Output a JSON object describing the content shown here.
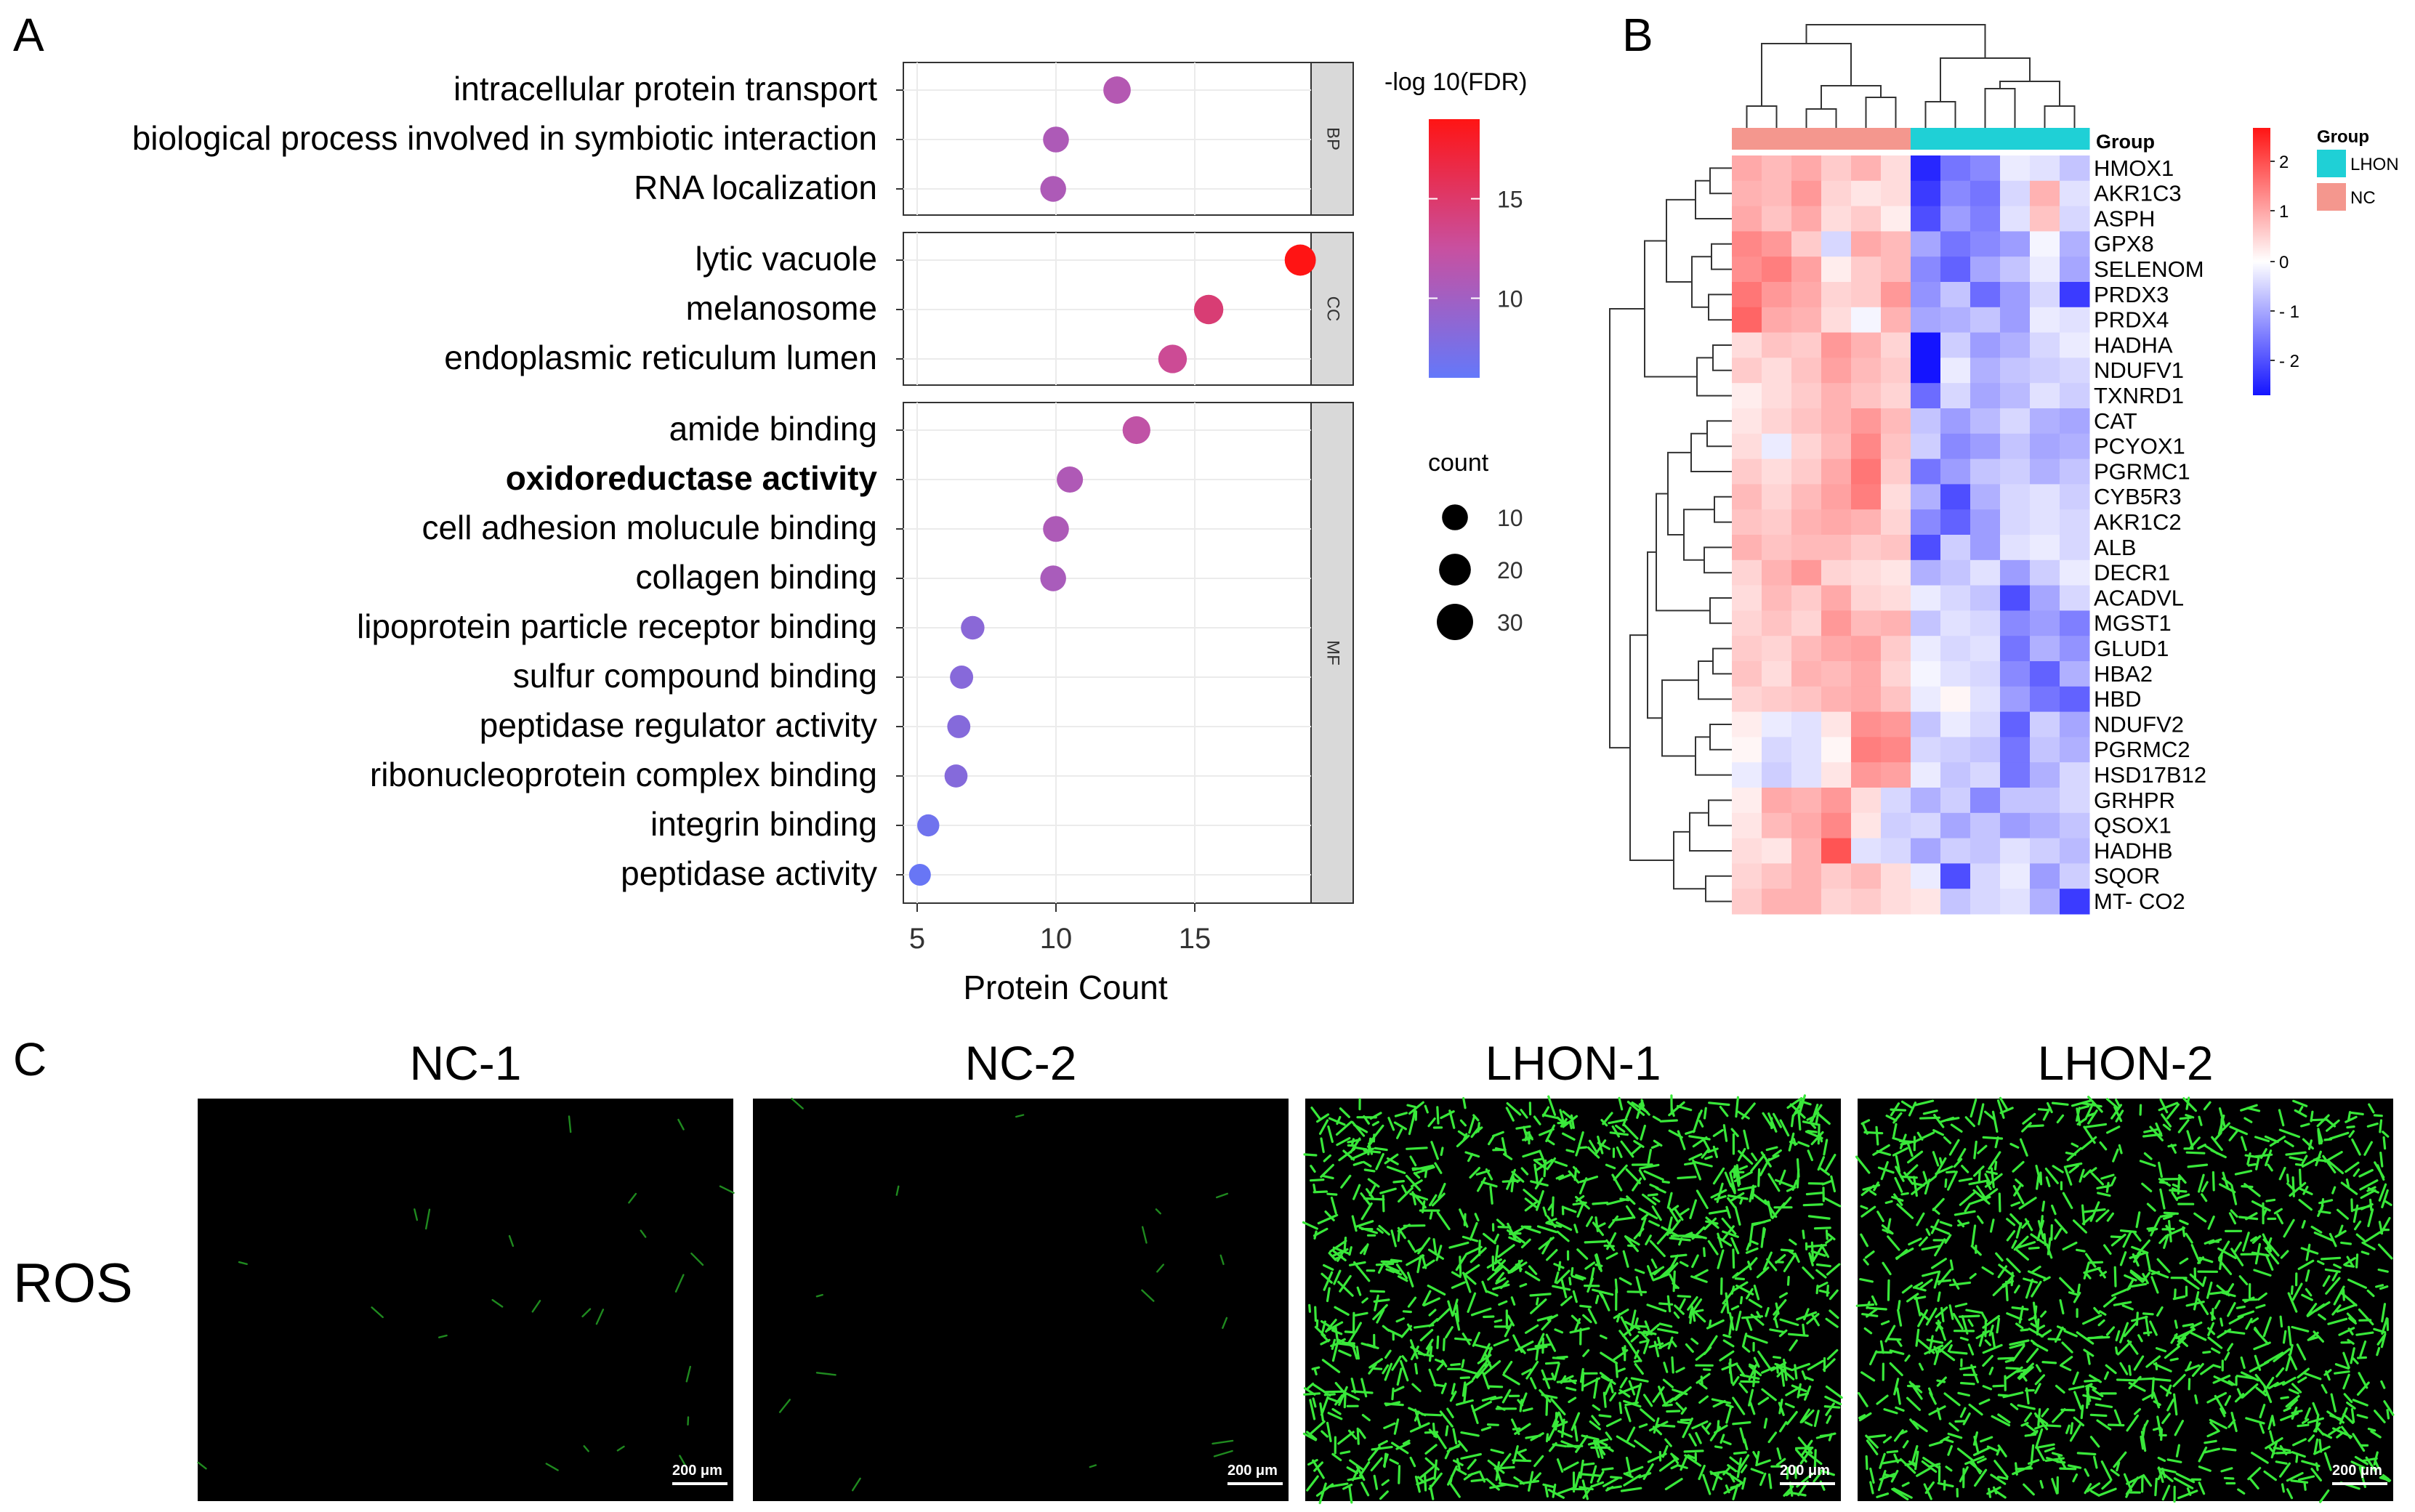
{
  "panels": {
    "a": "A",
    "b": "B",
    "c": "C"
  },
  "go_plot": {
    "xlabel": "Protein Count",
    "xticks": [
      5,
      10,
      15
    ],
    "colorbar_title": "-log 10(FDR)",
    "colorbar_ticks": [
      15,
      10
    ],
    "size_legend_title": "count",
    "size_legend_values": [
      10,
      20,
      30
    ],
    "facets": [
      {
        "label": "BP",
        "terms": [
          {
            "name": "intracellular protein transport",
            "count": 12.2,
            "fdr": 11.2,
            "bold": false
          },
          {
            "name": "biological process involved in symbiotic interaction",
            "count": 10.0,
            "fdr": 10.8,
            "bold": false
          },
          {
            "name": "RNA localization",
            "count": 9.9,
            "fdr": 10.8,
            "bold": false
          }
        ]
      },
      {
        "label": "CC",
        "terms": [
          {
            "name": "lytic vacuole",
            "count": 18.8,
            "fdr": 19.0,
            "bold": false
          },
          {
            "name": "melanosome",
            "count": 15.5,
            "fdr": 14.5,
            "bold": false
          },
          {
            "name": "endoplasmic reticulum lumen",
            "count": 14.2,
            "fdr": 13.0,
            "bold": false
          }
        ]
      },
      {
        "label": "MF",
        "terms": [
          {
            "name": "amide binding",
            "count": 12.9,
            "fdr": 12.0,
            "bold": false
          },
          {
            "name": "oxidoreductase activity",
            "count": 10.5,
            "fdr": 10.9,
            "bold": true
          },
          {
            "name": "cell adhesion molucule binding",
            "count": 10.0,
            "fdr": 10.8,
            "bold": false
          },
          {
            "name": "collagen binding",
            "count": 9.9,
            "fdr": 10.5,
            "bold": false
          },
          {
            "name": "lipoprotein particle receptor binding",
            "count": 7.0,
            "fdr": 8.5,
            "bold": false
          },
          {
            "name": "sulfur compound binding",
            "count": 6.6,
            "fdr": 8.3,
            "bold": false
          },
          {
            "name": "peptidase regulator activity",
            "count": 6.5,
            "fdr": 8.2,
            "bold": false
          },
          {
            "name": "ribonucleoprotein complex binding",
            "count": 6.4,
            "fdr": 8.2,
            "bold": false
          },
          {
            "name": "integrin binding",
            "count": 5.4,
            "fdr": 6.8,
            "bold": false
          },
          {
            "name": "peptidase activity",
            "count": 5.1,
            "fdr": 6.3,
            "bold": false
          }
        ]
      }
    ]
  },
  "heatmap": {
    "group_header": "Group",
    "legend_title": "Group",
    "legend_items": [
      {
        "label": "LHON",
        "color": "#1fd0d6"
      },
      {
        "label": "NC",
        "color": "#f4978e"
      }
    ],
    "colorbar_ticks": [
      "2",
      "1",
      "0",
      "- 1",
      "- 2"
    ],
    "genes": [
      "HMOX1",
      "AKR1C3",
      "ASPH",
      "GPX8",
      "SELENOM",
      "PRDX3",
      "PRDX4",
      "HADHA",
      "NDUFV1",
      "TXNRD1",
      "CAT",
      "PCYOX1",
      "PGRMC1",
      "CYB5R3",
      "AKR1C2",
      "ALB",
      "DECR1",
      "ACADVL",
      "MGST1",
      "GLUD1",
      "HBA2",
      "HBD",
      "NDUFV2",
      "PGRMC2",
      "HSD17B12",
      "GRHPR",
      "QSOX1",
      "HADHB",
      "SQOR",
      "MT- CO2"
    ],
    "sample_groups": [
      "NC",
      "NC",
      "NC",
      "NC",
      "NC",
      "NC",
      "LHON",
      "LHON",
      "LHON",
      "LHON",
      "LHON",
      "LHON"
    ],
    "values": [
      [
        1.0,
        0.8,
        1.0,
        0.6,
        0.9,
        0.4,
        -2.2,
        -1.4,
        -1.2,
        -0.2,
        -0.3,
        -0.6
      ],
      [
        0.9,
        0.8,
        1.2,
        0.5,
        0.3,
        0.4,
        -2.0,
        -1.2,
        -1.4,
        -0.4,
        0.9,
        -0.3
      ],
      [
        1.0,
        0.7,
        1.0,
        0.4,
        0.6,
        0.2,
        -1.8,
        -1.0,
        -1.3,
        -0.3,
        0.7,
        -0.4
      ],
      [
        1.4,
        1.2,
        0.6,
        -0.4,
        1.0,
        0.8,
        -0.9,
        -1.4,
        -1.2,
        -1.0,
        -0.1,
        -0.8
      ],
      [
        1.3,
        1.5,
        1.1,
        0.2,
        0.6,
        0.8,
        -1.2,
        -1.6,
        -0.9,
        -0.6,
        -0.2,
        -0.9
      ],
      [
        1.6,
        1.2,
        1.0,
        0.5,
        0.6,
        1.2,
        -1.1,
        -0.6,
        -1.5,
        -1.0,
        -0.4,
        -2.0
      ],
      [
        1.8,
        1.0,
        0.9,
        0.4,
        -0.1,
        0.9,
        -0.9,
        -0.8,
        -0.6,
        -1.0,
        -0.2,
        -0.3
      ],
      [
        0.4,
        0.7,
        0.6,
        1.2,
        0.9,
        0.5,
        -2.4,
        -0.5,
        -1.0,
        -0.8,
        -0.4,
        -0.2
      ],
      [
        0.6,
        0.4,
        0.7,
        1.1,
        0.8,
        0.6,
        -2.5,
        -0.2,
        -0.8,
        -0.6,
        -0.5,
        -0.4
      ],
      [
        0.2,
        0.4,
        0.6,
        0.9,
        0.7,
        0.5,
        -1.5,
        -0.4,
        -0.9,
        -0.7,
        -0.3,
        -0.5
      ],
      [
        0.3,
        0.5,
        0.7,
        0.9,
        1.2,
        0.8,
        -0.6,
        -1.0,
        -0.7,
        -0.4,
        -0.8,
        -0.9
      ],
      [
        0.4,
        -0.2,
        0.5,
        0.8,
        1.4,
        0.7,
        -0.5,
        -1.2,
        -1.0,
        -0.6,
        -0.9,
        -0.8
      ],
      [
        0.6,
        0.4,
        0.6,
        1.0,
        1.6,
        0.6,
        -1.4,
        -1.0,
        -0.6,
        -0.5,
        -0.8,
        -0.6
      ],
      [
        0.8,
        0.5,
        0.8,
        1.1,
        1.5,
        0.4,
        -0.8,
        -1.8,
        -0.8,
        -0.4,
        -0.3,
        -0.5
      ],
      [
        0.7,
        0.6,
        0.9,
        1.0,
        0.9,
        0.5,
        -1.2,
        -1.6,
        -1.0,
        -0.4,
        -0.3,
        -0.4
      ],
      [
        0.9,
        0.7,
        0.8,
        0.8,
        0.6,
        0.7,
        -1.8,
        -0.5,
        -1.0,
        -0.3,
        -0.2,
        -0.4
      ],
      [
        0.5,
        0.9,
        1.2,
        0.5,
        0.4,
        0.3,
        -0.8,
        -0.6,
        -0.3,
        -1.0,
        -0.5,
        -0.2
      ],
      [
        0.4,
        0.8,
        0.6,
        1.0,
        0.5,
        0.4,
        -0.2,
        -0.4,
        -0.6,
        -1.8,
        -0.9,
        -0.4
      ],
      [
        0.5,
        0.7,
        0.5,
        1.2,
        0.8,
        0.9,
        -0.6,
        -0.3,
        -0.4,
        -1.2,
        -1.0,
        -1.3
      ],
      [
        0.6,
        0.5,
        0.8,
        1.0,
        1.1,
        0.6,
        -0.2,
        -0.4,
        -0.3,
        -1.4,
        -0.8,
        -1.1
      ],
      [
        0.7,
        0.4,
        0.9,
        0.8,
        1.0,
        0.5,
        -0.1,
        -0.3,
        -0.4,
        -1.2,
        -1.6,
        -0.8
      ],
      [
        0.5,
        0.6,
        0.7,
        0.9,
        1.0,
        0.7,
        -0.2,
        0.1,
        -0.3,
        -1.0,
        -1.4,
        -1.6
      ],
      [
        0.2,
        -0.2,
        -0.3,
        0.3,
        1.3,
        1.2,
        -0.6,
        -0.2,
        -0.4,
        -1.6,
        -0.5,
        -0.9
      ],
      [
        0.1,
        -0.4,
        -0.3,
        0.1,
        1.5,
        1.4,
        -0.4,
        -0.5,
        -0.6,
        -1.4,
        -0.6,
        -0.8
      ],
      [
        -0.2,
        -0.5,
        -0.3,
        0.3,
        1.2,
        1.1,
        -0.2,
        -0.6,
        -0.4,
        -1.4,
        -0.8,
        -0.4
      ],
      [
        0.2,
        1.0,
        0.9,
        1.2,
        0.4,
        -0.4,
        -0.8,
        -0.5,
        -1.2,
        -0.6,
        -0.6,
        -0.4
      ],
      [
        0.3,
        0.8,
        1.0,
        1.4,
        0.3,
        -0.5,
        -0.4,
        -0.9,
        -0.6,
        -1.0,
        -0.8,
        -0.6
      ],
      [
        0.4,
        0.3,
        0.9,
        2.0,
        -0.3,
        -0.4,
        -0.9,
        -0.5,
        -0.6,
        -0.3,
        -0.5,
        -0.7
      ],
      [
        0.5,
        0.7,
        0.9,
        0.6,
        0.8,
        0.4,
        -0.2,
        -1.8,
        -0.4,
        -0.2,
        -1.0,
        -0.5
      ],
      [
        0.6,
        0.9,
        0.9,
        0.5,
        0.6,
        0.4,
        0.3,
        -0.6,
        -0.4,
        -0.3,
        -0.8,
        -2.0
      ]
    ]
  },
  "ros_panel": {
    "row_label": "ROS",
    "scale_bar": "200 μm",
    "images": [
      {
        "title": "NC-1",
        "density": 0.015
      },
      {
        "title": "NC-2",
        "density": 0.01
      },
      {
        "title": "LHON-1",
        "density": 1.0
      },
      {
        "title": "LHON-2",
        "density": 0.9
      }
    ]
  }
}
